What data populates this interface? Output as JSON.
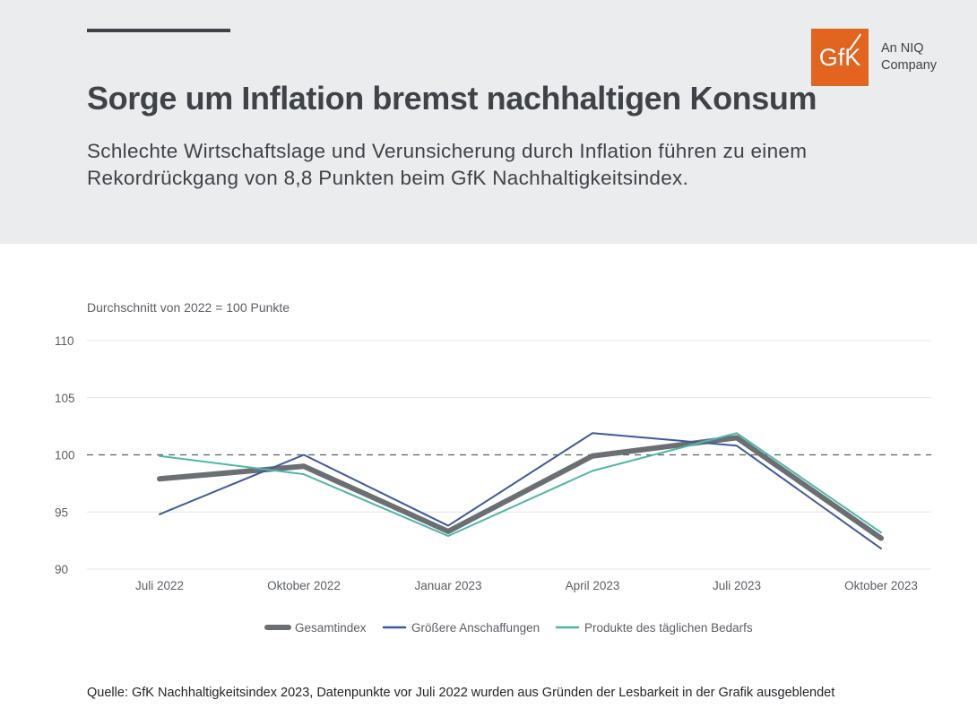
{
  "header": {
    "title": "Sorge um Inflation bremst nachhaltigen Konsum",
    "subtitle_line1": "Schlechte Wirtschaftslage und Verunsicherung durch Inflation führen zu einem",
    "subtitle_line2": "Rekordrückgang von 8,8 Punkten beim GfK Nachhaltigkeitsindex."
  },
  "logo": {
    "mark_text": "GfK",
    "caption_line1": "An NIQ",
    "caption_line2": "Company",
    "color": "#e2641f"
  },
  "source_note": "Quelle: GfK Nachhaltigkeitsindex 2023, Datenpunkte vor Juli 2022 wurden aus Gründen der Lesbarkeit in der Grafik ausgeblendet",
  "chart_data": {
    "type": "line",
    "ylabel": "Durchschnitt von 2022 = 100 Punkte",
    "ylim": [
      90,
      110
    ],
    "yticks": [
      90,
      95,
      100,
      105,
      110
    ],
    "reference_line": 100,
    "grid": true,
    "legend_position": "bottom",
    "categories": [
      "Juli 2022",
      "Oktober 2022",
      "Januar 2023",
      "April 2023",
      "Juli 2023",
      "Oktober 2023"
    ],
    "series": [
      {
        "name": "Gesamtindex",
        "color": "#6b6e72",
        "values": [
          97.9,
          99.0,
          93.3,
          99.9,
          101.5,
          92.7
        ]
      },
      {
        "name": "Größere Anschaffungen",
        "color": "#3f5b9a",
        "values": [
          94.8,
          100.0,
          93.8,
          101.9,
          100.8,
          91.8
        ]
      },
      {
        "name": "Produkte des täglichen Bedarfs",
        "color": "#4fb6a8",
        "values": [
          99.9,
          98.3,
          92.9,
          98.6,
          101.9,
          93.2
        ]
      }
    ]
  }
}
